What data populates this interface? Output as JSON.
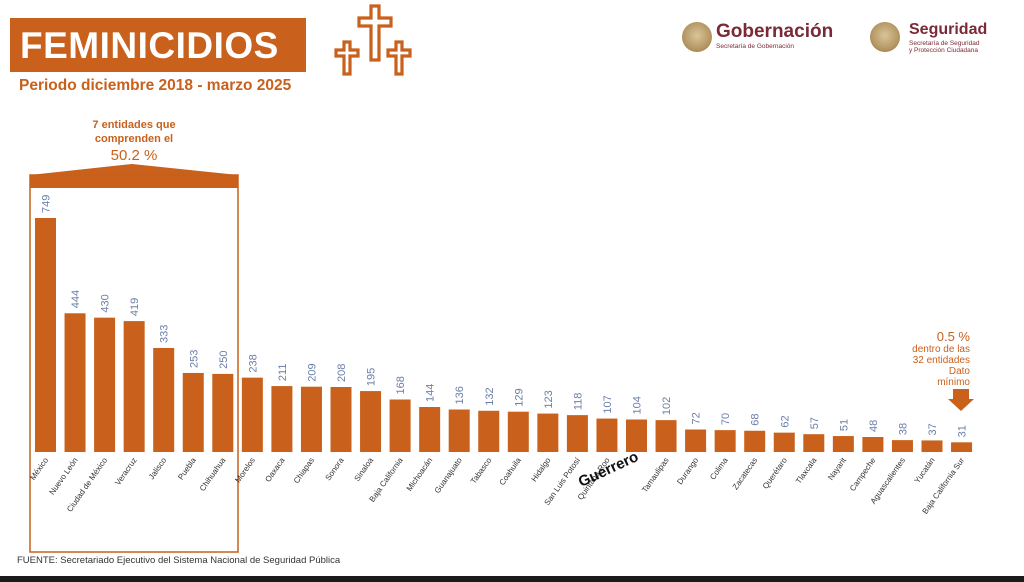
{
  "header": {
    "title": "FEMINICIDIOS",
    "subtitle": "Periodo diciembre 2018 - marzo 2025"
  },
  "logos": {
    "gob_name": "Gobernación",
    "gob_sub": "Secretaría de Gobernación",
    "seg_name": "Seguridad",
    "seg_sub_1": "Secretaría de Seguridad",
    "seg_sub_2": "y Protección Ciudadana"
  },
  "source": "FUENTE: Secretariado Ejecutivo del Sistema Nacional de Seguridad Pública",
  "colors": {
    "bar": "#c9601b",
    "value_label": "#6b7fa8",
    "accent": "#c9601b"
  },
  "icons": [
    "crosses-icon",
    "gobernacion-seal-icon",
    "seguridad-seal-icon",
    "down-arrow-icon"
  ],
  "chart_data": {
    "type": "bar",
    "categories": [
      "México",
      "Nuevo León",
      "Ciudad de México",
      "Veracruz",
      "Jalisco",
      "Puebla",
      "Chihuahua",
      "Morelos",
      "Oaxaca",
      "Chiapas",
      "Sonora",
      "Sinaloa",
      "Baja California",
      "Michoacán",
      "Guanajuato",
      "Tabasco",
      "Coahuila",
      "Hidalgo",
      "San Luis Potosí",
      "Quintana Roo",
      "Guerrero",
      "Tamaulipas",
      "Durango",
      "Colima",
      "Zacatecas",
      "Querétaro",
      "Tlaxcala",
      "Nayarit",
      "Campeche",
      "Aguascalientes",
      "Yucatán",
      "Baja California Sur"
    ],
    "values": [
      749,
      444,
      430,
      419,
      333,
      253,
      250,
      238,
      211,
      209,
      208,
      195,
      168,
      144,
      136,
      132,
      129,
      123,
      118,
      107,
      104,
      102,
      72,
      70,
      68,
      62,
      57,
      51,
      48,
      38,
      37,
      31
    ],
    "highlighted_category": "Guerrero",
    "ylim": [
      0,
      749
    ],
    "grid": false,
    "annotations": {
      "top_group_line1": "7 entidades que",
      "top_group_line2": "comprenden el",
      "top_group_pct": "50.2 %",
      "min_pct": "0.5 %",
      "min_line1": "dentro de las",
      "min_line2": "32 entidades",
      "min_line3": "Dato",
      "min_line4": "mínimo"
    }
  }
}
